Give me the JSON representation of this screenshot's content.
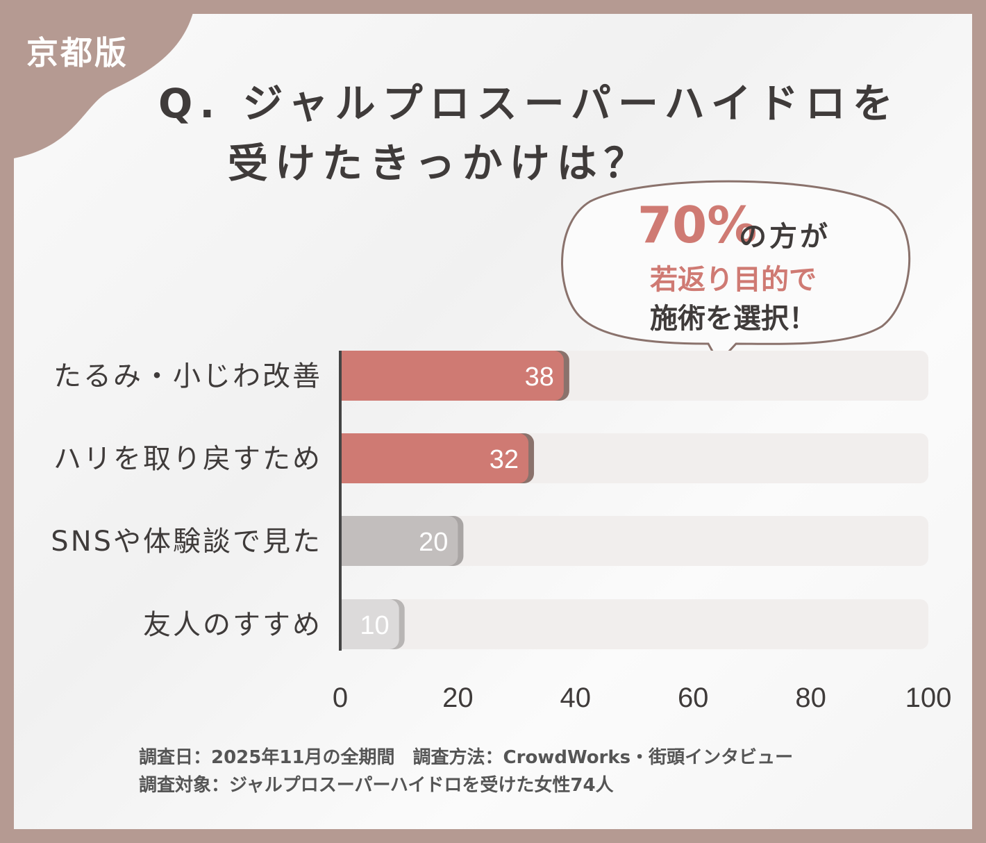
{
  "badge": "京都版",
  "title": {
    "line1": "Q. ジャルプロスーパーハイドロを",
    "line2": "受けたきっかけは？"
  },
  "callout": {
    "percent": "70%",
    "line1_rest": "の方が",
    "line2": "若返り目的で",
    "line3": "施術を選択！"
  },
  "colors": {
    "frame": "#b59a92",
    "accent": "#cf7a73",
    "accent_shadow": "#8a726c",
    "gray": "#c2bebd",
    "light_gray": "#dcdada",
    "track": "#f1eeed",
    "axis": "#444444"
  },
  "chart_data": {
    "type": "bar",
    "orientation": "horizontal",
    "categories": [
      "たるみ・小じわ改善",
      "ハリを取り戻すため",
      "SNSや体験談で見た",
      "友人のすすめ"
    ],
    "values": [
      38,
      32,
      20,
      10
    ],
    "bar_colors": [
      "#cf7a73",
      "#cf7a73",
      "#c2bebd",
      "#dcdada"
    ],
    "xlim": [
      0,
      100
    ],
    "xticks": [
      "0",
      "20",
      "40",
      "60",
      "80",
      "100"
    ],
    "title": "",
    "xlabel": "",
    "ylabel": "",
    "grid": false
  },
  "notes": {
    "line1": "調査日：2025年11月の全期間　調査方法：CrowdWorks・街頭インタビュー",
    "line2": "調査対象：ジャルプロスーパーハイドロを受けた女性74人"
  }
}
